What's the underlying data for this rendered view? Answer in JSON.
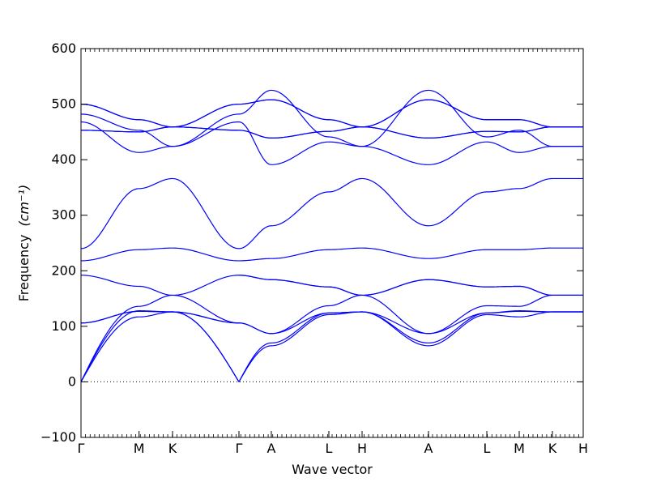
{
  "chart_data": {
    "type": "line",
    "title": "",
    "xlabel": "Wave vector",
    "ylabel": "Frequency",
    "ylabel_unit": "(cm⁻¹)",
    "ylim": [
      -100,
      600
    ],
    "y_ticks": [
      -100,
      0,
      100,
      200,
      300,
      400,
      500,
      600
    ],
    "x_ticks": [
      {
        "label": "Γ",
        "x": 0
      },
      {
        "label": "M",
        "x": 0.1156
      },
      {
        "label": "K",
        "x": 0.1823
      },
      {
        "label": "Γ",
        "x": 0.3145
      },
      {
        "label": "A",
        "x": 0.379
      },
      {
        "label": "L",
        "x": 0.4935
      },
      {
        "label": "H",
        "x": 0.5597
      },
      {
        "label": "A",
        "x": 0.6919
      },
      {
        "label": "L",
        "x": 0.8081
      },
      {
        "label": "M",
        "x": 0.8726
      },
      {
        "label": "K",
        "x": 0.9387
      },
      {
        "label": "H",
        "x": 1.0
      }
    ],
    "zero_line": true,
    "line_color": "#0000ff",
    "segments": [
      {
        "from": "Γ",
        "to": "M",
        "x0": 0,
        "x1": 0.1156,
        "branches": [
          [
            0,
            117
          ],
          [
            0,
            128
          ],
          [
            0,
            136
          ],
          [
            106,
            127
          ],
          [
            106,
            127
          ],
          [
            192,
            172
          ],
          [
            218,
            238
          ],
          [
            240,
            348
          ],
          [
            453,
            450
          ],
          [
            453,
            450
          ],
          [
            468,
            413
          ],
          [
            482,
            453
          ],
          [
            500,
            472
          ],
          [
            500,
            472
          ]
        ]
      },
      {
        "from": "M",
        "to": "K",
        "x0": 0.1156,
        "x1": 0.1823,
        "branches": [
          [
            117,
            126
          ],
          [
            128,
            126
          ],
          [
            136,
            156
          ],
          [
            127,
            126
          ],
          [
            127,
            126
          ],
          [
            172,
            156
          ],
          [
            238,
            241
          ],
          [
            348,
            366
          ],
          [
            450,
            459
          ],
          [
            450,
            459
          ],
          [
            413,
            424
          ],
          [
            453,
            424
          ],
          [
            472,
            459
          ],
          [
            472,
            459
          ]
        ]
      },
      {
        "from": "K",
        "to": "Γ",
        "x0": 0.1823,
        "x1": 0.3145,
        "branches": [
          [
            126,
            0
          ],
          [
            126,
            0
          ],
          [
            156,
            192
          ],
          [
            126,
            106
          ],
          [
            126,
            106
          ],
          [
            156,
            106
          ],
          [
            241,
            218
          ],
          [
            366,
            240
          ],
          [
            459,
            453
          ],
          [
            459,
            453
          ],
          [
            424,
            482
          ],
          [
            424,
            468
          ],
          [
            459,
            500
          ],
          [
            459,
            500
          ]
        ]
      },
      {
        "from": "Γ",
        "to": "A",
        "x0": 0.3145,
        "x1": 0.379,
        "branches": [
          [
            0,
            65
          ],
          [
            0,
            70
          ],
          [
            106,
            87
          ],
          [
            106,
            87
          ],
          [
            192,
            184
          ],
          [
            192,
            184
          ],
          [
            218,
            222
          ],
          [
            240,
            281
          ],
          [
            453,
            439
          ],
          [
            453,
            439
          ],
          [
            468,
            391
          ],
          [
            482,
            525
          ],
          [
            500,
            508
          ],
          [
            500,
            508
          ]
        ]
      },
      {
        "from": "A",
        "to": "L",
        "x0": 0.379,
        "x1": 0.4935,
        "branches": [
          [
            65,
            121
          ],
          [
            70,
            124
          ],
          [
            87,
            137
          ],
          [
            87,
            124
          ],
          [
            184,
            171
          ],
          [
            184,
            171
          ],
          [
            222,
            238
          ],
          [
            281,
            342
          ],
          [
            439,
            451
          ],
          [
            439,
            451
          ],
          [
            391,
            432
          ],
          [
            525,
            441
          ],
          [
            508,
            472
          ],
          [
            508,
            472
          ]
        ]
      },
      {
        "from": "L",
        "to": "H",
        "x0": 0.4935,
        "x1": 0.5597,
        "branches": [
          [
            121,
            126
          ],
          [
            124,
            126
          ],
          [
            137,
            156
          ],
          [
            124,
            126
          ],
          [
            171,
            156
          ],
          [
            171,
            156
          ],
          [
            238,
            241
          ],
          [
            342,
            366
          ],
          [
            451,
            459
          ],
          [
            451,
            459
          ],
          [
            432,
            424
          ],
          [
            441,
            424
          ],
          [
            472,
            459
          ],
          [
            472,
            459
          ]
        ]
      },
      {
        "from": "H",
        "to": "A",
        "x0": 0.5597,
        "x1": 0.6919,
        "branches": [
          [
            126,
            65
          ],
          [
            126,
            70
          ],
          [
            156,
            184
          ],
          [
            126,
            87
          ],
          [
            156,
            87
          ],
          [
            156,
            184
          ],
          [
            241,
            222
          ],
          [
            366,
            281
          ],
          [
            459,
            439
          ],
          [
            459,
            439
          ],
          [
            424,
            525
          ],
          [
            424,
            391
          ],
          [
            459,
            508
          ],
          [
            459,
            508
          ]
        ]
      },
      {
        "from": "A",
        "to": "L",
        "x0": 0.6919,
        "x1": 0.8081,
        "branches": [
          [
            65,
            121
          ],
          [
            70,
            124
          ],
          [
            184,
            171
          ],
          [
            87,
            137
          ],
          [
            87,
            124
          ],
          [
            184,
            171
          ],
          [
            222,
            238
          ],
          [
            281,
            342
          ],
          [
            439,
            451
          ],
          [
            439,
            451
          ],
          [
            525,
            441
          ],
          [
            391,
            432
          ],
          [
            508,
            472
          ],
          [
            508,
            472
          ]
        ]
      },
      {
        "from": "L",
        "to": "M",
        "x0": 0.8081,
        "x1": 0.8726,
        "branches": [
          [
            121,
            117
          ],
          [
            124,
            128
          ],
          [
            171,
            172
          ],
          [
            137,
            136
          ],
          [
            124,
            127
          ],
          [
            171,
            172
          ],
          [
            238,
            238
          ],
          [
            342,
            348
          ],
          [
            451,
            450
          ],
          [
            451,
            450
          ],
          [
            441,
            453
          ],
          [
            432,
            413
          ],
          [
            472,
            472
          ],
          [
            472,
            472
          ]
        ]
      },
      {
        "from": "M",
        "to": "K",
        "x0": 0.8726,
        "x1": 0.9387,
        "branches": [
          [
            117,
            126
          ],
          [
            128,
            126
          ],
          [
            172,
            156
          ],
          [
            136,
            156
          ],
          [
            127,
            126
          ],
          [
            172,
            156
          ],
          [
            238,
            241
          ],
          [
            348,
            366
          ],
          [
            450,
            459
          ],
          [
            450,
            459
          ],
          [
            453,
            424
          ],
          [
            413,
            424
          ],
          [
            472,
            459
          ],
          [
            472,
            459
          ]
        ]
      },
      {
        "from": "K",
        "to": "H",
        "x0": 0.9387,
        "x1": 1.0,
        "branches": [
          [
            126,
            126
          ],
          [
            126,
            126
          ],
          [
            156,
            156
          ],
          [
            156,
            156
          ],
          [
            126,
            126
          ],
          [
            156,
            156
          ],
          [
            241,
            241
          ],
          [
            366,
            366
          ],
          [
            459,
            459
          ],
          [
            459,
            459
          ],
          [
            424,
            424
          ],
          [
            424,
            424
          ],
          [
            459,
            459
          ],
          [
            459,
            459
          ]
        ]
      }
    ]
  }
}
